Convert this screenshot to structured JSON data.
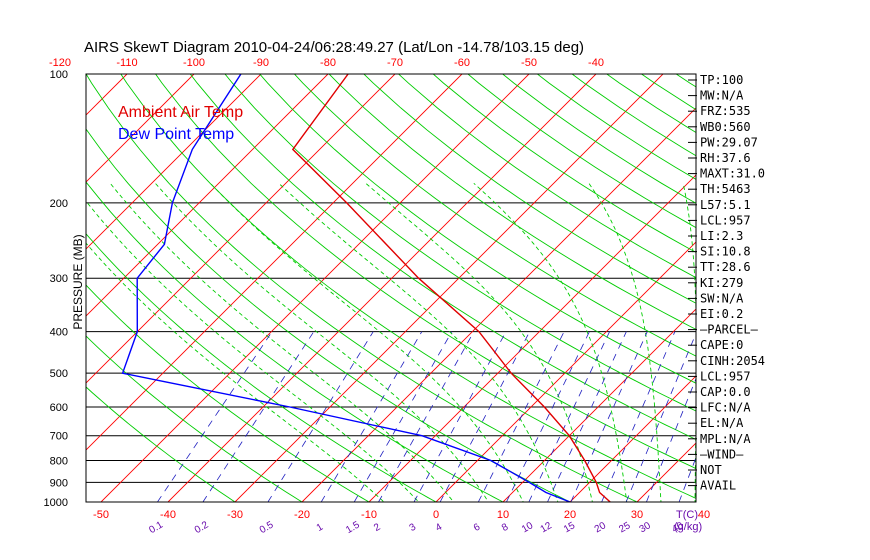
{
  "chart_data": {
    "type": "line",
    "title": "AIRS SkewT Diagram 2010-04-24/06:28:49.27 (Lat/Lon -14.78/103.15 deg)",
    "ylabel": "PRESSURE (MB)",
    "xlabel_bottom": "T(C)",
    "mixing_label": "(g/kg)",
    "legend": [
      "Ambient Air Temp",
      "Dew Point Temp"
    ],
    "legend_placement": "top-left",
    "ylim": [
      1000,
      100
    ],
    "y_scale": "log",
    "pressure_ticks": [
      100,
      200,
      300,
      400,
      500,
      600,
      700,
      800,
      900,
      1000
    ],
    "top_temp_ticks": [
      -120,
      -110,
      -100,
      -90,
      -80,
      -70,
      -60,
      -50,
      -40
    ],
    "bottom_temp_ticks": [
      -50,
      -40,
      -30,
      -20,
      -10,
      0,
      10,
      20,
      30,
      40
    ],
    "mixing_ratio_ticks": [
      "0.1",
      "0.2",
      "0.5",
      "1",
      "1.5",
      "2",
      "3",
      "4",
      "6",
      "8",
      "10",
      "12",
      "15",
      "20",
      "25",
      "30",
      "40"
    ],
    "series": [
      {
        "name": "Ambient Air Temp",
        "color": "#e00000",
        "pressure": [
          100,
          150,
          200,
          300,
          400,
          500,
          600,
          700,
          800,
          900,
          950,
          1000
        ],
        "temperature_c": [
          -77,
          -74,
          -58,
          -36,
          -19,
          -8,
          2,
          10,
          16,
          21,
          23,
          26
        ]
      },
      {
        "name": "Dew Point Temp",
        "color": "#0000ff",
        "pressure": [
          100,
          150,
          200,
          250,
          300,
          400,
          500,
          600,
          700,
          800,
          900,
          950,
          1000
        ],
        "temperature_c": [
          -93,
          -89,
          -84,
          -79,
          -78,
          -70,
          -66,
          -36,
          -12,
          2,
          11,
          15,
          20
        ]
      }
    ],
    "indices": [
      "TP:100",
      "MW:N/A",
      "FRZ:535",
      "WB0:560",
      "PW:29.07",
      "RH:37.6",
      "MAXT:31.0",
      "TH:5463",
      "L57:5.1",
      "LCL:957",
      "LI:2.3",
      "SI:10.8",
      "TT:28.6",
      "KI:279",
      "SW:N/A",
      "EI:0.2",
      "—PARCEL—",
      "CAPE:0",
      "CINH:2054",
      "LCL:957",
      "CAP:0.0",
      "LFC:N/A",
      "EL:N/A",
      "MPL:N/A",
      "—WIND—",
      "NOT",
      "AVAIL"
    ],
    "colors": {
      "isotherm": "#ff0000",
      "dry_adiabat": "#00cc00",
      "moist_adiabat": "#00cc00",
      "mixing_ratio": "#2020c0",
      "isobar": "#000000",
      "tick_label_temp": "#ff0000",
      "tick_label_mixing": "#6a0dad"
    }
  }
}
